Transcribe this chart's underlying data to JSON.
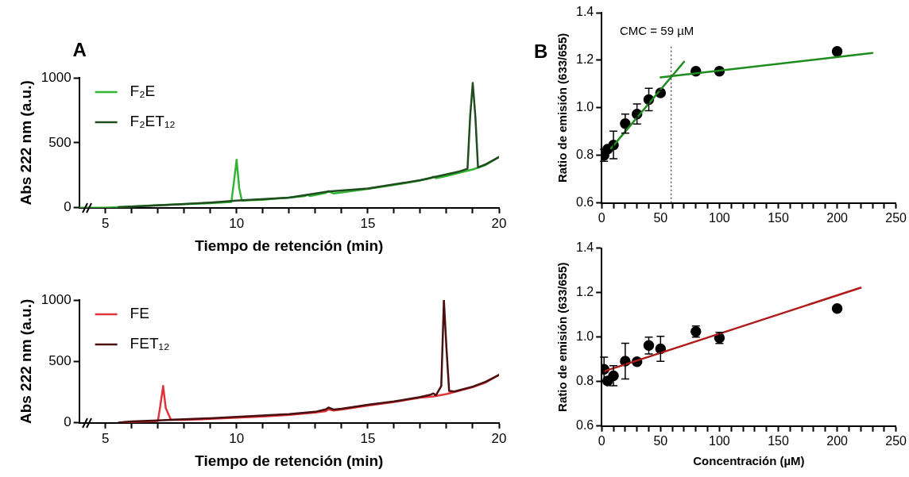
{
  "chart_data": [
    {
      "type": "line",
      "xlabel": "Tiempo de retención (min)",
      "ylabel": "Abs 222 nm (a.u.)",
      "annotations": [
        "A"
      ],
      "legend": "top left",
      "xlim": [
        4,
        20
      ],
      "ylim": [
        0,
        1000
      ],
      "yticks": [
        0,
        500,
        1000
      ],
      "xticks": [
        5,
        {
          "value": 6,
          "label": null
        },
        {
          "value": 7,
          "label": null
        },
        {
          "value": 8,
          "label": null
        },
        {
          "value": 9,
          "label": null
        },
        10,
        {
          "value": 11,
          "label": null
        },
        {
          "value": 12,
          "label": null
        },
        {
          "value": 13,
          "label": null
        },
        {
          "value": 14,
          "label": null
        },
        15,
        {
          "value": 16,
          "label": null
        },
        {
          "value": 17,
          "label": null
        },
        {
          "value": 18,
          "label": null
        },
        {
          "value": 19,
          "label": null
        },
        20
      ],
      "series": [
        {
          "name": "F₂ET₁₂",
          "color": "#1f4d1f",
          "x": [
            5.5,
            7,
            9,
            10,
            12,
            13.5,
            15,
            17,
            18.5,
            18.8,
            18.9,
            19.0,
            19.1,
            19.2,
            19.5,
            20
          ],
          "values": [
            5,
            18,
            40,
            55,
            78,
            125,
            148,
            212,
            280,
            300,
            700,
            960,
            700,
            310,
            335,
            390
          ]
        },
        {
          "name": "F₂E",
          "color": "#33b533",
          "x": [
            4,
            5,
            6,
            7,
            8,
            9,
            9.8,
            9.9,
            10,
            10.1,
            10.2,
            10.5,
            11,
            11.5,
            12,
            12.6,
            12.7,
            12.8,
            13.4,
            13.5,
            13.7,
            14,
            15,
            16,
            17,
            17.4,
            17.5,
            17.6,
            18,
            18.5,
            19,
            19.5,
            20
          ],
          "values": [
            0,
            0,
            10,
            20,
            28,
            35,
            45,
            200,
            370,
            150,
            55,
            58,
            62,
            70,
            78,
            90,
            100,
            90,
            115,
            128,
            110,
            118,
            145,
            175,
            210,
            228,
            240,
            228,
            245,
            270,
            295,
            330,
            390
          ]
        }
      ]
    },
    {
      "type": "line",
      "xlabel": "Tiempo de retención (min)",
      "ylabel": "Abs 222 nm (a.u.)",
      "legend": "top left",
      "xlim": [
        4,
        20
      ],
      "ylim": [
        0,
        1000
      ],
      "yticks": [
        0,
        500,
        1000
      ],
      "xticks": [
        5,
        {
          "value": 6,
          "label": null
        },
        {
          "value": 7,
          "label": null
        },
        {
          "value": 8,
          "label": null
        },
        {
          "value": 9,
          "label": null
        },
        10,
        {
          "value": 11,
          "label": null
        },
        {
          "value": 12,
          "label": null
        },
        {
          "value": 13,
          "label": null
        },
        {
          "value": 14,
          "label": null
        },
        15,
        {
          "value": 16,
          "label": null
        },
        {
          "value": 17,
          "label": null
        },
        {
          "value": 18,
          "label": null
        },
        {
          "value": 19,
          "label": null
        },
        20
      ],
      "series": [
        {
          "name": "FET₁₂",
          "color": "#4a0f0f",
          "x": [
            5.5,
            6,
            7,
            8,
            9,
            10,
            11,
            12,
            13,
            13.4,
            13.5,
            13.7,
            14,
            15,
            16,
            17,
            17.4,
            17.5,
            17.6,
            17.8,
            17.9,
            18.0,
            18.1,
            18.3,
            19,
            19.5,
            20
          ],
          "values": [
            2,
            12,
            20,
            30,
            38,
            48,
            60,
            72,
            90,
            110,
            125,
            108,
            115,
            148,
            175,
            210,
            230,
            240,
            225,
            300,
            1000,
            600,
            260,
            255,
            295,
            335,
            390
          ]
        },
        {
          "name": "FE",
          "color": "#e0333a",
          "x": [
            5.7,
            6.5,
            7.0,
            7.1,
            7.2,
            7.3,
            7.5,
            8,
            9,
            10,
            11,
            12,
            13,
            13.4,
            13.5,
            13.7,
            14,
            15,
            16,
            17,
            17.5,
            18,
            19,
            19.5,
            20
          ],
          "values": [
            5,
            10,
            15,
            150,
            300,
            120,
            25,
            25,
            32,
            42,
            52,
            65,
            85,
            95,
            110,
            100,
            108,
            140,
            170,
            205,
            215,
            235,
            290,
            330,
            390
          ]
        }
      ]
    },
    {
      "type": "scatter",
      "ylabel": "Ratio de emisión (633/655)",
      "annotations": [
        "B"
      ],
      "marker": "circle",
      "xlim": [
        0,
        250
      ],
      "ylim": [
        0.6,
        1.4
      ],
      "yticks": [
        0.6,
        0.8,
        {
          "value": 1,
          "label": "1.0"
        },
        1.2,
        1.4
      ],
      "xticks": [
        0,
        {
          "value": 10,
          "label": null
        },
        {
          "value": 20,
          "label": null
        },
        {
          "value": 30,
          "label": null
        },
        {
          "value": 40,
          "label": null
        },
        50,
        {
          "value": 60,
          "label": null
        },
        {
          "value": 70,
          "label": null
        },
        {
          "value": 80,
          "label": null
        },
        {
          "value": 90,
          "label": null
        },
        100,
        {
          "value": 110,
          "label": null
        },
        {
          "value": 120,
          "label": null
        },
        {
          "value": 130,
          "label": null
        },
        {
          "value": 140,
          "label": null
        },
        150,
        {
          "value": 160,
          "label": null
        },
        {
          "value": 170,
          "label": null
        },
        {
          "value": 180,
          "label": null
        },
        {
          "value": 190,
          "label": null
        },
        200,
        {
          "value": 210,
          "label": null
        },
        {
          "value": 220,
          "label": null
        },
        {
          "value": 230,
          "label": null
        },
        {
          "value": 240,
          "label": null
        },
        250
      ],
      "ref_lines": [
        {
          "axis": "x",
          "value": 59,
          "label": "CMC = 59 µM",
          "line_style": "dotted",
          "color": "#444444"
        }
      ],
      "series": [
        {
          "type": "line",
          "marker": "none",
          "color": "#1e8c1e",
          "x": [
            8,
            70
          ],
          "values": [
            0.83,
            1.194
          ]
        },
        {
          "type": "line",
          "marker": "none",
          "color": "#1e8c1e",
          "x": [
            50,
            230
          ],
          "values": [
            1.128,
            1.231
          ]
        },
        {
          "color": "#000000",
          "x": [
            2,
            5,
            10,
            20,
            30,
            40,
            50,
            80,
            100,
            200
          ],
          "values": [
            0.8,
            0.826,
            0.844,
            0.934,
            0.974,
            1.035,
            1.063,
            1.154,
            1.154,
            1.237
          ],
          "errors": [
            0.025,
            null,
            0.058,
            0.04,
            0.042,
            0.047,
            0.011,
            null,
            null,
            null
          ]
        }
      ]
    },
    {
      "type": "scatter",
      "xlabel": "Concentración (µM)",
      "ylabel": "Ratio de emisión (633/655)",
      "marker": "circle",
      "xlim": [
        0,
        250
      ],
      "ylim": [
        0.6,
        1.4
      ],
      "yticks": [
        0.6,
        0.8,
        {
          "value": 1,
          "label": "1.0"
        },
        1.2,
        1.4
      ],
      "xticks": [
        0,
        {
          "value": 10,
          "label": null
        },
        {
          "value": 20,
          "label": null
        },
        {
          "value": 30,
          "label": null
        },
        {
          "value": 40,
          "label": null
        },
        50,
        {
          "value": 60,
          "label": null
        },
        {
          "value": 70,
          "label": null
        },
        {
          "value": 80,
          "label": null
        },
        {
          "value": 90,
          "label": null
        },
        100,
        {
          "value": 110,
          "label": null
        },
        {
          "value": 120,
          "label": null
        },
        {
          "value": 130,
          "label": null
        },
        {
          "value": 140,
          "label": null
        },
        150,
        {
          "value": 160,
          "label": null
        },
        {
          "value": 170,
          "label": null
        },
        {
          "value": 180,
          "label": null
        },
        {
          "value": 190,
          "label": null
        },
        200,
        {
          "value": 210,
          "label": null
        },
        {
          "value": 220,
          "label": null
        },
        {
          "value": 230,
          "label": null
        },
        {
          "value": 240,
          "label": null
        },
        250
      ],
      "series": [
        {
          "type": "line",
          "marker": "none",
          "color": "#b01a1a",
          "x": [
            2,
            220
          ],
          "values": [
            0.846,
            1.222
          ]
        },
        {
          "color": "#000000",
          "x": [
            2,
            5,
            10,
            20,
            30,
            40,
            50,
            80,
            100,
            200
          ],
          "values": [
            0.855,
            0.803,
            0.826,
            0.892,
            0.889,
            0.962,
            0.947,
            1.025,
            0.996,
            1.128
          ],
          "errors": [
            0.055,
            null,
            0.045,
            0.08,
            null,
            0.038,
            0.056,
            0.025,
            0.025,
            null
          ]
        }
      ]
    }
  ]
}
